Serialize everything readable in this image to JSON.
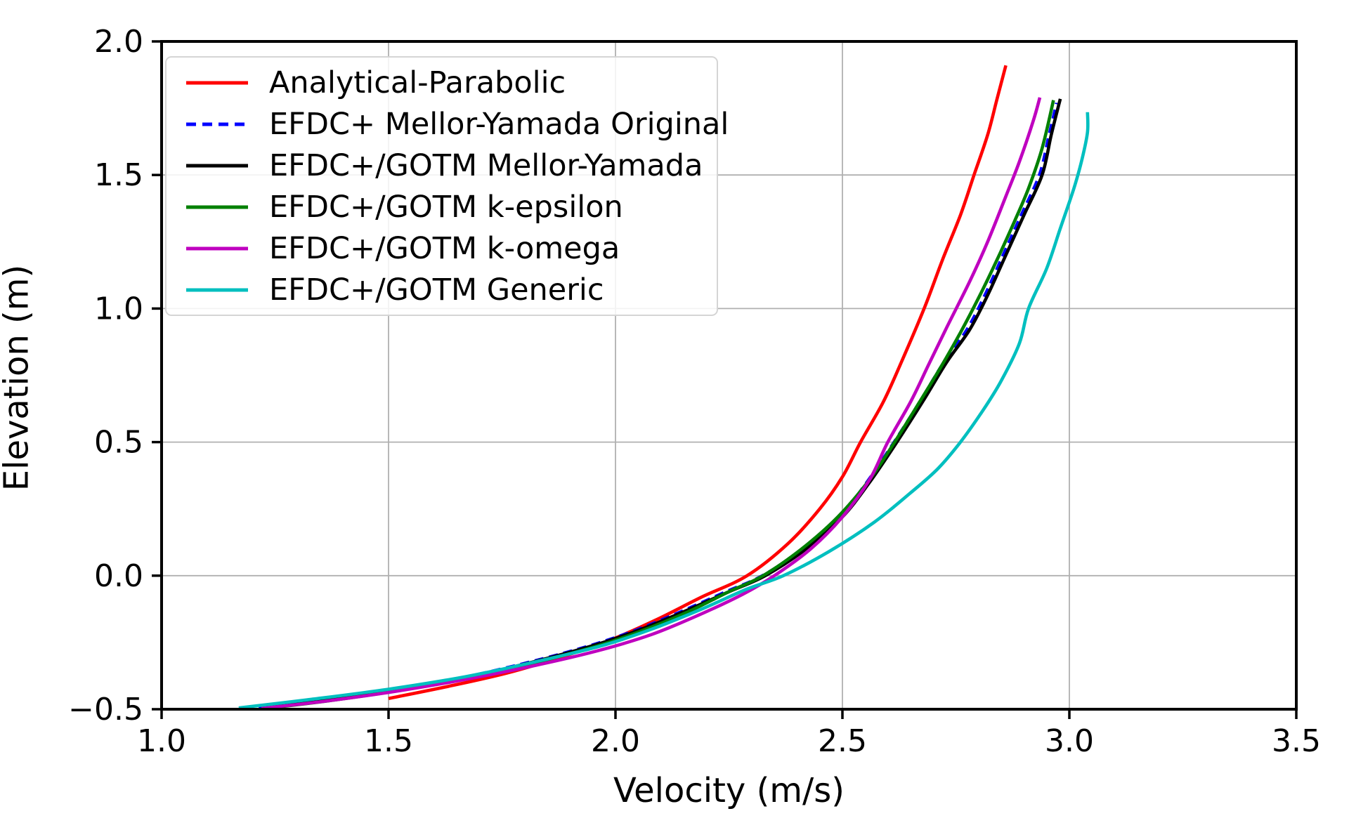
{
  "figure": {
    "background": "#ffffff"
  },
  "axes": {
    "grid_color": "#b0b0b0",
    "spine_color": "#000000",
    "tick_color": "#000000",
    "xtick_labels": [
      "1.0",
      "1.5",
      "2.0",
      "2.5",
      "3.0",
      "3.5"
    ],
    "ytick_labels": [
      "−0.5",
      "0.0",
      "0.5",
      "1.0",
      "1.5",
      "2.0"
    ]
  },
  "chart_data": {
    "type": "line",
    "title": "",
    "xlabel": "Velocity (m/s)",
    "ylabel": "Elevation (m)",
    "xlim": [
      1.0,
      3.5
    ],
    "ylim": [
      -0.5,
      2.0
    ],
    "xticks": [
      1.0,
      1.5,
      2.0,
      2.5,
      3.0,
      3.5
    ],
    "yticks": [
      -0.5,
      0.0,
      0.5,
      1.0,
      1.5,
      2.0
    ],
    "grid": true,
    "legend_position": "upper left",
    "series": [
      {
        "name": "Analytical-Parabolic",
        "color": "#ff0000",
        "dash": false,
        "points": [
          [
            1.5,
            -0.46
          ],
          [
            1.63,
            -0.415
          ],
          [
            1.76,
            -0.365
          ],
          [
            1.88,
            -0.305
          ],
          [
            1.99,
            -0.24
          ],
          [
            2.09,
            -0.165
          ],
          [
            2.19,
            -0.08
          ],
          [
            2.29,
            0.0
          ],
          [
            2.38,
            0.12
          ],
          [
            2.45,
            0.25
          ],
          [
            2.5,
            0.37
          ],
          [
            2.54,
            0.5
          ],
          [
            2.59,
            0.65
          ],
          [
            2.63,
            0.8
          ],
          [
            2.68,
            1.0
          ],
          [
            2.72,
            1.18
          ],
          [
            2.76,
            1.35
          ],
          [
            2.79,
            1.5
          ],
          [
            2.82,
            1.65
          ],
          [
            2.84,
            1.78
          ],
          [
            2.86,
            1.91
          ]
        ]
      },
      {
        "name": "EFDC+ Mellor-Yamada Original",
        "color": "#0000ff",
        "dash": true,
        "points": [
          [
            1.214,
            -0.497
          ],
          [
            1.354,
            -0.468
          ],
          [
            1.514,
            -0.428
          ],
          [
            1.674,
            -0.378
          ],
          [
            1.824,
            -0.318
          ],
          [
            1.944,
            -0.262
          ],
          [
            2.044,
            -0.205
          ],
          [
            2.144,
            -0.135
          ],
          [
            2.244,
            -0.06
          ],
          [
            2.324,
            0.0
          ],
          [
            2.414,
            0.1
          ],
          [
            2.494,
            0.22
          ],
          [
            2.554,
            0.35
          ],
          [
            2.614,
            0.5
          ],
          [
            2.674,
            0.66
          ],
          [
            2.724,
            0.8
          ],
          [
            2.774,
            0.92
          ],
          [
            2.814,
            1.05
          ],
          [
            2.854,
            1.2
          ],
          [
            2.894,
            1.35
          ],
          [
            2.934,
            1.5
          ],
          [
            2.954,
            1.64
          ],
          [
            2.972,
            1.77
          ]
        ]
      },
      {
        "name": "EFDC+/GOTM Mellor-Yamada",
        "color": "#000000",
        "dash": false,
        "points": [
          [
            1.22,
            -0.497
          ],
          [
            1.36,
            -0.468
          ],
          [
            1.52,
            -0.428
          ],
          [
            1.68,
            -0.378
          ],
          [
            1.83,
            -0.318
          ],
          [
            1.95,
            -0.262
          ],
          [
            2.05,
            -0.205
          ],
          [
            2.15,
            -0.135
          ],
          [
            2.25,
            -0.06
          ],
          [
            2.33,
            0.0
          ],
          [
            2.42,
            0.1
          ],
          [
            2.5,
            0.22
          ],
          [
            2.56,
            0.35
          ],
          [
            2.62,
            0.5
          ],
          [
            2.68,
            0.66
          ],
          [
            2.73,
            0.8
          ],
          [
            2.78,
            0.92
          ],
          [
            2.82,
            1.05
          ],
          [
            2.86,
            1.2
          ],
          [
            2.9,
            1.35
          ],
          [
            2.94,
            1.5
          ],
          [
            2.96,
            1.65
          ],
          [
            2.98,
            1.785
          ]
        ]
      },
      {
        "name": "EFDC+/GOTM k-epsilon",
        "color": "#008000",
        "dash": false,
        "points": [
          [
            1.23,
            -0.497
          ],
          [
            1.37,
            -0.468
          ],
          [
            1.53,
            -0.428
          ],
          [
            1.69,
            -0.378
          ],
          [
            1.84,
            -0.318
          ],
          [
            1.96,
            -0.263
          ],
          [
            2.06,
            -0.205
          ],
          [
            2.16,
            -0.135
          ],
          [
            2.25,
            -0.06
          ],
          [
            2.325,
            0.0
          ],
          [
            2.41,
            0.1
          ],
          [
            2.49,
            0.22
          ],
          [
            2.56,
            0.36
          ],
          [
            2.615,
            0.5
          ],
          [
            2.67,
            0.65
          ],
          [
            2.72,
            0.79
          ],
          [
            2.76,
            0.91
          ],
          [
            2.8,
            1.04
          ],
          [
            2.84,
            1.18
          ],
          [
            2.88,
            1.33
          ],
          [
            2.91,
            1.45
          ],
          [
            2.94,
            1.6
          ],
          [
            2.965,
            1.78
          ]
        ]
      },
      {
        "name": "EFDC+/GOTM k-omega",
        "color": "#bf00bf",
        "dash": false,
        "points": [
          [
            1.22,
            -0.497
          ],
          [
            1.36,
            -0.47
          ],
          [
            1.52,
            -0.432
          ],
          [
            1.68,
            -0.385
          ],
          [
            1.84,
            -0.33
          ],
          [
            1.97,
            -0.277
          ],
          [
            2.08,
            -0.22
          ],
          [
            2.18,
            -0.15
          ],
          [
            2.28,
            -0.07
          ],
          [
            2.35,
            0.0
          ],
          [
            2.43,
            0.1
          ],
          [
            2.5,
            0.22
          ],
          [
            2.56,
            0.36
          ],
          [
            2.6,
            0.5
          ],
          [
            2.65,
            0.65
          ],
          [
            2.69,
            0.79
          ],
          [
            2.73,
            0.93
          ],
          [
            2.78,
            1.1
          ],
          [
            2.82,
            1.25
          ],
          [
            2.86,
            1.42
          ],
          [
            2.89,
            1.55
          ],
          [
            2.92,
            1.7
          ],
          [
            2.935,
            1.79
          ]
        ]
      },
      {
        "name": "EFDC+/GOTM Generic",
        "color": "#00bfbf",
        "dash": false,
        "points": [
          [
            1.17,
            -0.495
          ],
          [
            1.32,
            -0.465
          ],
          [
            1.5,
            -0.425
          ],
          [
            1.67,
            -0.378
          ],
          [
            1.83,
            -0.32
          ],
          [
            1.97,
            -0.262
          ],
          [
            2.08,
            -0.2
          ],
          [
            2.19,
            -0.125
          ],
          [
            2.29,
            -0.05
          ],
          [
            2.37,
            0.0
          ],
          [
            2.47,
            0.09
          ],
          [
            2.57,
            0.2
          ],
          [
            2.65,
            0.31
          ],
          [
            2.71,
            0.4
          ],
          [
            2.76,
            0.5
          ],
          [
            2.81,
            0.62
          ],
          [
            2.85,
            0.73
          ],
          [
            2.89,
            0.87
          ],
          [
            2.91,
            1.0
          ],
          [
            2.95,
            1.15
          ],
          [
            2.98,
            1.3
          ],
          [
            3.01,
            1.45
          ],
          [
            3.028,
            1.56
          ],
          [
            3.04,
            1.66
          ],
          [
            3.04,
            1.735
          ]
        ]
      }
    ]
  }
}
